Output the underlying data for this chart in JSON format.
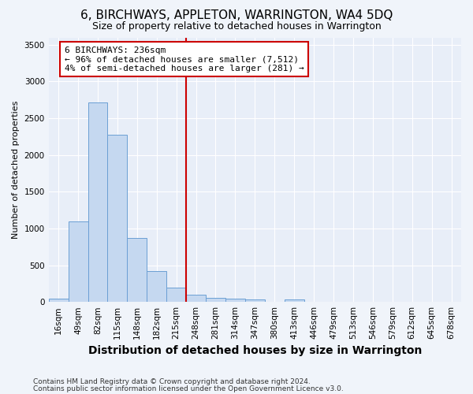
{
  "title": "6, BIRCHWAYS, APPLETON, WARRINGTON, WA4 5DQ",
  "subtitle": "Size of property relative to detached houses in Warrington",
  "xlabel": "Distribution of detached houses by size in Warrington",
  "ylabel": "Number of detached properties",
  "categories": [
    "16sqm",
    "49sqm",
    "82sqm",
    "115sqm",
    "148sqm",
    "182sqm",
    "215sqm",
    "248sqm",
    "281sqm",
    "314sqm",
    "347sqm",
    "380sqm",
    "413sqm",
    "446sqm",
    "479sqm",
    "513sqm",
    "546sqm",
    "579sqm",
    "612sqm",
    "645sqm",
    "678sqm"
  ],
  "values": [
    50,
    1100,
    2720,
    2280,
    870,
    420,
    190,
    100,
    60,
    50,
    30,
    5,
    30,
    5,
    0,
    0,
    0,
    0,
    0,
    0,
    0
  ],
  "bar_color": "#c5d8f0",
  "bar_edge_color": "#6b9fd4",
  "vline_index": 6.5,
  "annotation_line1": "6 BIRCHWAYS: 236sqm",
  "annotation_line2": "← 96% of detached houses are smaller (7,512)",
  "annotation_line3": "4% of semi-detached houses are larger (281) →",
  "annotation_box_facecolor": "#ffffff",
  "annotation_box_edgecolor": "#cc0000",
  "vline_color": "#cc0000",
  "ylim": [
    0,
    3600
  ],
  "yticks": [
    0,
    500,
    1000,
    1500,
    2000,
    2500,
    3000,
    3500
  ],
  "plot_bg_color": "#e8eef8",
  "fig_bg_color": "#f0f4fa",
  "grid_color": "#ffffff",
  "footer_line1": "Contains HM Land Registry data © Crown copyright and database right 2024.",
  "footer_line2": "Contains public sector information licensed under the Open Government Licence v3.0.",
  "title_fontsize": 11,
  "subtitle_fontsize": 9,
  "xlabel_fontsize": 10,
  "ylabel_fontsize": 8,
  "tick_fontsize": 7.5,
  "footer_fontsize": 6.5
}
